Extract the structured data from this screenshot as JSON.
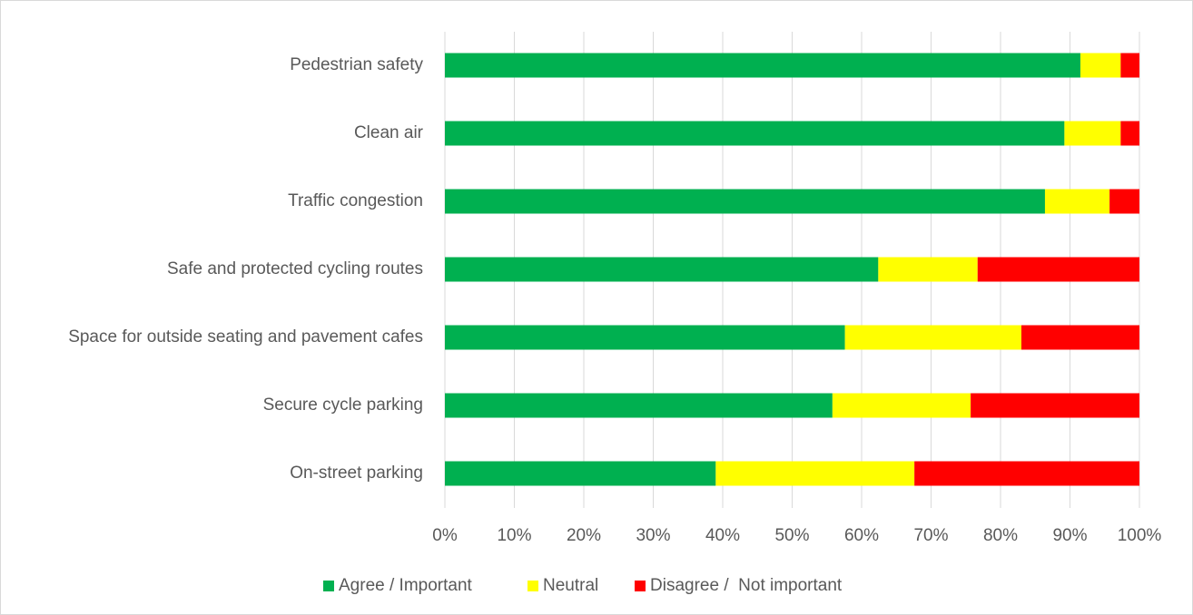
{
  "chart_data": {
    "type": "stacked_bar_horizontal",
    "categories": [
      "Pedestrian safety",
      "Clean air",
      "Traffic congestion",
      "Safe and protected cycling routes",
      "Space for outside seating and pavement cafes",
      "Secure cycle parking",
      "On-street parking"
    ],
    "series": [
      {
        "name": "Agree / Important",
        "color": "#00b050",
        "values": [
          91.5,
          89.2,
          86.4,
          62.4,
          57.6,
          55.8,
          39.0
        ]
      },
      {
        "name": "Neutral",
        "color": "#ffff00",
        "values": [
          5.8,
          8.1,
          9.3,
          14.3,
          25.4,
          19.9,
          28.6
        ]
      },
      {
        "name": "Disagree /  Not important",
        "color": "#ff0000",
        "values": [
          2.7,
          2.7,
          4.3,
          23.3,
          17.0,
          24.3,
          32.4
        ]
      }
    ],
    "xlim": [
      0,
      100
    ],
    "xticks": [
      {
        "value": 0,
        "label": "0%"
      },
      {
        "value": 10,
        "label": "10%"
      },
      {
        "value": 20,
        "label": "20%"
      },
      {
        "value": 30,
        "label": "30%"
      },
      {
        "value": 40,
        "label": "40%"
      },
      {
        "value": 50,
        "label": "50%"
      },
      {
        "value": 60,
        "label": "60%"
      },
      {
        "value": 70,
        "label": "70%"
      },
      {
        "value": 80,
        "label": "80%"
      },
      {
        "value": 90,
        "label": "90%"
      },
      {
        "value": 100,
        "label": "100%"
      }
    ],
    "grid": true,
    "legend": "bottom"
  }
}
